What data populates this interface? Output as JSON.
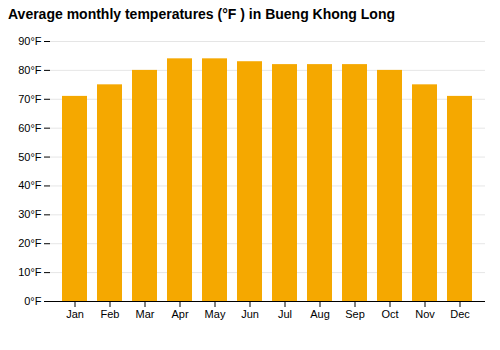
{
  "chart_data": {
    "type": "bar",
    "title": "Average monthly temperatures (°F ) in Bueng Khong Long",
    "categories": [
      "Jan",
      "Feb",
      "Mar",
      "Apr",
      "May",
      "Jun",
      "Jul",
      "Aug",
      "Sep",
      "Oct",
      "Nov",
      "Dec"
    ],
    "values": [
      71,
      75,
      80,
      84,
      84,
      83,
      82,
      82,
      82,
      80,
      75,
      71
    ],
    "color": "#F5A800",
    "ylim": [
      0,
      90
    ],
    "yticks": [
      {
        "value": 0,
        "label": "0°F"
      },
      {
        "value": 10,
        "label": "10°F"
      },
      {
        "value": 20,
        "label": "20°F"
      },
      {
        "value": 30,
        "label": "30°F"
      },
      {
        "value": 40,
        "label": "40°F"
      },
      {
        "value": 50,
        "label": "50°F"
      },
      {
        "value": 60,
        "label": "60°F"
      },
      {
        "value": 70,
        "label": "70°F"
      },
      {
        "value": 80,
        "label": "80°F"
      },
      {
        "value": 90,
        "label": "90°F"
      }
    ],
    "grid": true
  }
}
